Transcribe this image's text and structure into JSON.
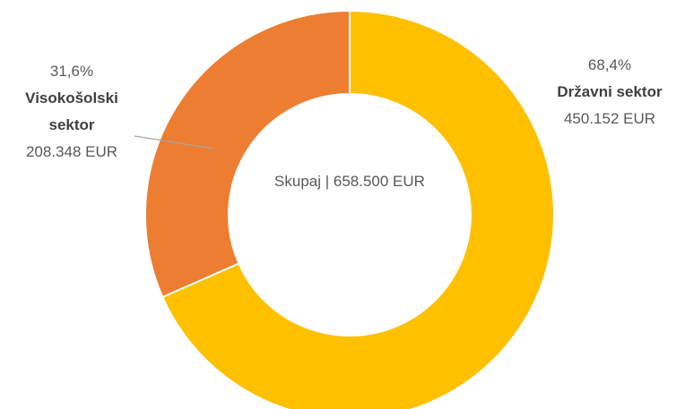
{
  "chart_data": {
    "type": "donut",
    "categories": [
      "Državni sektor",
      "Visokošolski sektor"
    ],
    "values": [
      68.4,
      31.6
    ],
    "value_labels": [
      "68,4%",
      "31,6%"
    ],
    "amounts": [
      450152,
      208348
    ],
    "amount_labels": [
      "450.152 EUR",
      "208.348 EUR"
    ],
    "colors": [
      "#FFC000",
      "#ED7D31"
    ],
    "total": 658500,
    "center_label": "Skupaj | 658.500 EUR"
  }
}
